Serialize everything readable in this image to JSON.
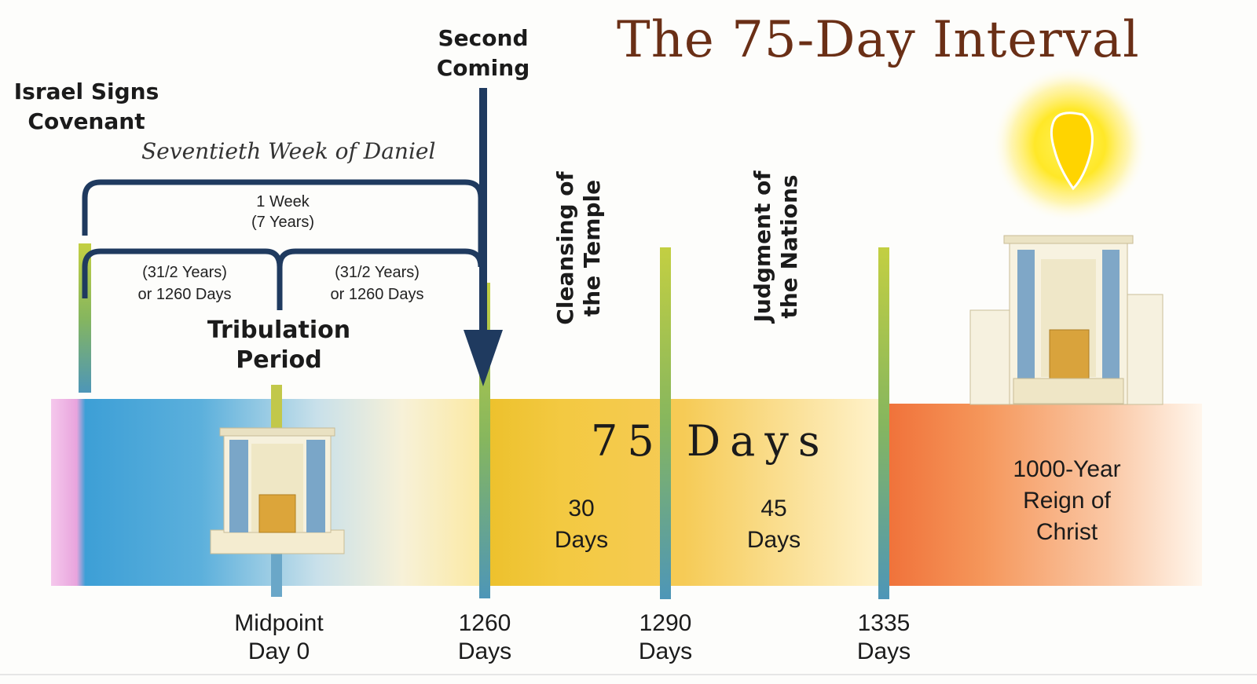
{
  "title": "The 75-Day Interval",
  "events": {
    "israel_signs": [
      "Israel Signs",
      "Covenant"
    ],
    "second_coming": [
      "Second",
      "Coming"
    ],
    "cleansing": [
      "Cleansing of",
      "the Temple"
    ],
    "judgment": [
      "Judgment of",
      "the Nations"
    ]
  },
  "brackets": {
    "seventieth_week": "Seventieth Week of Daniel",
    "one_week": [
      "1 Week",
      "(7 Years)"
    ],
    "first_half": [
      "(31/2 Years)",
      "or 1260 Days"
    ],
    "second_half": [
      "(31/2 Years)",
      "or 1260 Days"
    ]
  },
  "tribulation": [
    "Tribulation",
    "Period"
  ],
  "band": {
    "seventy_five": "75 Days",
    "thirty": [
      "30",
      "Days"
    ],
    "forty_five": [
      "45",
      "Days"
    ],
    "millennium": [
      "1000-Year",
      "Reign of",
      "Christ"
    ]
  },
  "markers": [
    {
      "id": "midpoint",
      "lines": [
        "Midpoint",
        "Day 0"
      ],
      "day": 0
    },
    {
      "id": "d1260",
      "lines": [
        "1260",
        "Days"
      ],
      "day": 1260
    },
    {
      "id": "d1290",
      "lines": [
        "1290",
        "Days"
      ],
      "day": 1290
    },
    {
      "id": "d1335",
      "lines": [
        "1335",
        "Days"
      ],
      "day": 1335
    }
  ],
  "colors": {
    "title": "#6a2f16",
    "blue": "#3f9fd6",
    "yellow": "#f1c62e",
    "orange": "#f3803a",
    "bracket": "#1f3a5f",
    "sun": "#ffe627"
  }
}
